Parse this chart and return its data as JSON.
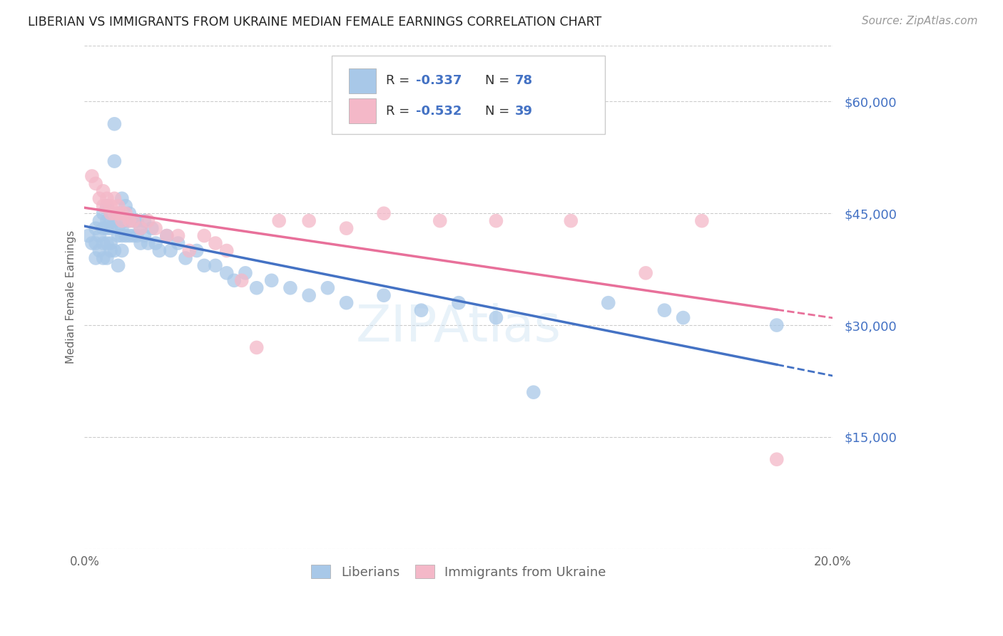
{
  "title": "LIBERIAN VS IMMIGRANTS FROM UKRAINE MEDIAN FEMALE EARNINGS CORRELATION CHART",
  "source": "Source: ZipAtlas.com",
  "ylabel": "Median Female Earnings",
  "xlim": [
    0.0,
    0.2
  ],
  "ylim": [
    0,
    67500
  ],
  "yticks": [
    0,
    15000,
    30000,
    45000,
    60000
  ],
  "ytick_labels": [
    "",
    "$15,000",
    "$30,000",
    "$45,000",
    "$60,000"
  ],
  "xticks": [
    0.0,
    0.05,
    0.1,
    0.15,
    0.2
  ],
  "xtick_labels": [
    "0.0%",
    "",
    "",
    "",
    "20.0%"
  ],
  "blue_color": "#a8c8e8",
  "pink_color": "#f4b8c8",
  "line_blue": "#4472c4",
  "line_pink": "#e8709a",
  "text_blue": "#4472c4",
  "grid_color": "#cccccc",
  "background": "#ffffff",
  "title_color": "#222222",
  "blue_R": "-0.337",
  "blue_N": "78",
  "pink_R": "-0.532",
  "pink_N": "39",
  "blue_x": [
    0.001,
    0.002,
    0.003,
    0.003,
    0.003,
    0.004,
    0.004,
    0.004,
    0.005,
    0.005,
    0.005,
    0.005,
    0.006,
    0.006,
    0.006,
    0.006,
    0.006,
    0.007,
    0.007,
    0.007,
    0.007,
    0.007,
    0.008,
    0.008,
    0.008,
    0.008,
    0.009,
    0.009,
    0.009,
    0.009,
    0.01,
    0.01,
    0.01,
    0.01,
    0.01,
    0.011,
    0.011,
    0.011,
    0.012,
    0.012,
    0.012,
    0.013,
    0.013,
    0.014,
    0.014,
    0.015,
    0.015,
    0.016,
    0.016,
    0.017,
    0.018,
    0.019,
    0.02,
    0.022,
    0.023,
    0.025,
    0.027,
    0.03,
    0.032,
    0.035,
    0.038,
    0.04,
    0.043,
    0.046,
    0.05,
    0.055,
    0.06,
    0.065,
    0.07,
    0.08,
    0.09,
    0.1,
    0.11,
    0.12,
    0.14,
    0.155,
    0.16,
    0.185
  ],
  "blue_y": [
    42000,
    41000,
    43000,
    41000,
    39000,
    44000,
    42000,
    40000,
    45000,
    43000,
    41000,
    39000,
    46000,
    44000,
    43000,
    41000,
    39000,
    45000,
    44000,
    43000,
    41000,
    40000,
    57000,
    52000,
    44000,
    40000,
    45000,
    43000,
    42000,
    38000,
    47000,
    45000,
    43000,
    42000,
    40000,
    46000,
    44000,
    42000,
    45000,
    44000,
    42000,
    44000,
    42000,
    44000,
    42000,
    43000,
    41000,
    44000,
    42000,
    41000,
    43000,
    41000,
    40000,
    42000,
    40000,
    41000,
    39000,
    40000,
    38000,
    38000,
    37000,
    36000,
    37000,
    35000,
    36000,
    35000,
    34000,
    35000,
    33000,
    34000,
    32000,
    33000,
    31000,
    21000,
    33000,
    32000,
    31000,
    30000
  ],
  "pink_x": [
    0.002,
    0.003,
    0.004,
    0.005,
    0.005,
    0.006,
    0.006,
    0.007,
    0.007,
    0.008,
    0.008,
    0.009,
    0.009,
    0.01,
    0.01,
    0.011,
    0.012,
    0.013,
    0.015,
    0.017,
    0.019,
    0.022,
    0.025,
    0.028,
    0.032,
    0.035,
    0.038,
    0.042,
    0.046,
    0.052,
    0.06,
    0.07,
    0.08,
    0.095,
    0.11,
    0.13,
    0.15,
    0.165,
    0.185
  ],
  "pink_y": [
    50000,
    49000,
    47000,
    48000,
    46000,
    47000,
    46000,
    45000,
    46000,
    47000,
    45000,
    46000,
    45000,
    45000,
    44000,
    45000,
    44000,
    44000,
    43000,
    44000,
    43000,
    42000,
    42000,
    40000,
    42000,
    41000,
    40000,
    36000,
    27000,
    44000,
    44000,
    43000,
    45000,
    44000,
    44000,
    44000,
    37000,
    44000,
    12000
  ]
}
